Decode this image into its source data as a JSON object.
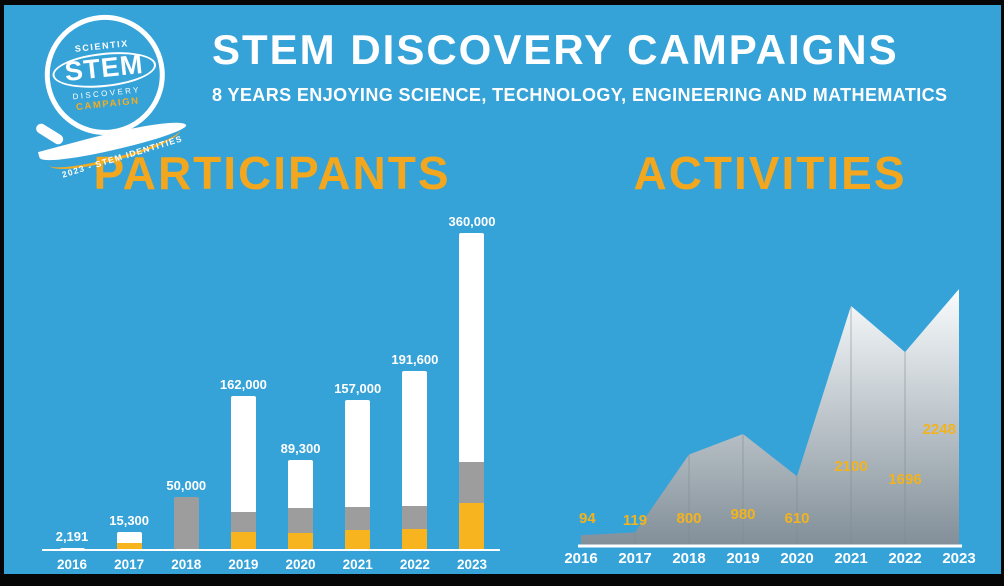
{
  "logo": {
    "scientix": "SCIENTIX",
    "stem": "STEM",
    "discovery": "DISCOVERY",
    "campaign": "CAMPAIGN",
    "ribbon": "2023 - STEM IDENTITIES"
  },
  "header": {
    "title": "STEM DISCOVERY CAMPAIGNS",
    "subtitle": "8 YEARS ENJOYING SCIENCE, TECHNOLOGY, ENGINEERING AND MATHEMATICS"
  },
  "sections": {
    "participants_title": "PARTICIPANTS",
    "activities_title": "ACTIVITIES"
  },
  "colors": {
    "background": "#35A2D8",
    "accent_yellow": "#F2A71F",
    "text_white": "#FFFFFF"
  },
  "chart_data": [
    {
      "type": "bar",
      "title": "PARTICIPANTS",
      "categories": [
        "2016",
        "2017",
        "2018",
        "2019",
        "2020",
        "2021",
        "2022",
        "2023"
      ],
      "values": [
        2191,
        15300,
        50000,
        162000,
        89300,
        157000,
        191600,
        360000
      ],
      "value_labels": [
        "2,191",
        "15,300",
        "50,000",
        "162,000",
        "89,300",
        "157,000",
        "191,600",
        "360,000"
      ],
      "ylim": [
        0,
        360000
      ],
      "grid": false,
      "label_color": "#FFFFFF",
      "axis_color": "#FFFFFF",
      "segment_colors": {
        "white": "#FFFFFF",
        "gray": "#9D9D9D",
        "yellow": "#F7B41E"
      },
      "segments": [
        [
          {
            "color": "white",
            "fraction": 1
          }
        ],
        [
          {
            "color": "yellow",
            "fraction": 0.42
          },
          {
            "color": "white",
            "fraction": 0.58
          }
        ],
        [
          {
            "color": "gray",
            "fraction": 1
          }
        ],
        [
          {
            "color": "yellow",
            "fraction": 0.12
          },
          {
            "color": "gray",
            "fraction": 0.13
          },
          {
            "color": "white",
            "fraction": 0.75
          }
        ],
        [
          {
            "color": "yellow",
            "fraction": 0.2
          },
          {
            "color": "gray",
            "fraction": 0.27
          },
          {
            "color": "white",
            "fraction": 0.53
          }
        ],
        [
          {
            "color": "yellow",
            "fraction": 0.14
          },
          {
            "color": "gray",
            "fraction": 0.15
          },
          {
            "color": "white",
            "fraction": 0.71
          }
        ],
        [
          {
            "color": "yellow",
            "fraction": 0.12
          },
          {
            "color": "gray",
            "fraction": 0.13
          },
          {
            "color": "white",
            "fraction": 0.75
          }
        ],
        [
          {
            "color": "yellow",
            "fraction": 0.15
          },
          {
            "color": "gray",
            "fraction": 0.13
          },
          {
            "color": "white",
            "fraction": 0.72
          }
        ]
      ]
    },
    {
      "type": "area",
      "title": "ACTIVITIES",
      "categories": [
        "2016",
        "2017",
        "2018",
        "2019",
        "2020",
        "2021",
        "2022",
        "2023"
      ],
      "values": [
        94,
        119,
        800,
        980,
        610,
        2100,
        1696,
        2248
      ],
      "ylim": [
        0,
        2248
      ],
      "grid": false,
      "fill_gradient": {
        "top": "#FFFFFF",
        "bottom": "#848E96"
      },
      "separator_color": "#7F888F",
      "label_color": "#F2B31E",
      "axis_color": "#FFFFFF",
      "value_label_y": [
        277,
        279,
        277,
        273,
        277,
        225,
        238,
        188
      ],
      "value_label_anchor": [
        "start",
        "middle",
        "middle",
        "middle",
        "middle",
        "middle",
        "middle",
        "end"
      ]
    }
  ]
}
